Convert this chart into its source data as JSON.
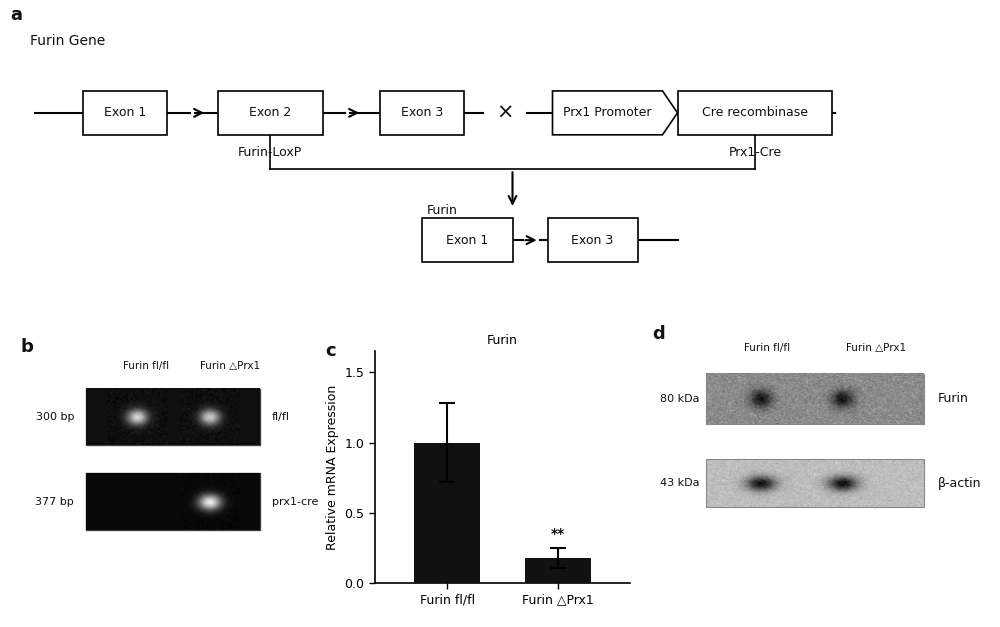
{
  "panel_a": {
    "furin_gene_label": "Furin Gene",
    "exon1_label": "Exon 1",
    "exon2_label": "Exon 2",
    "exon3_label": "Exon 3",
    "prx1_promoter_label": "Prx1 Promoter",
    "cre_label": "Cre recombinase",
    "furin_loxp_label": "Furin-LoxP",
    "prx1_cre_label": "Prx1-Cre",
    "furin_result_label": "Furin",
    "exon1_result_label": "Exon 1",
    "exon3_result_label": "Exon 3"
  },
  "panel_b": {
    "band1_label": "300 bp",
    "band2_label": "377 bp",
    "lane1_label": "Furin fl/fl",
    "lane2_label": "Furin △Prx1",
    "gel1_label": "fl/fl",
    "gel2_label": "prx1-cre"
  },
  "panel_c": {
    "title": "Furin",
    "ylabel": "Relative mRNA Expression",
    "categories": [
      "Furin fl/fl",
      "Furin △Prx1"
    ],
    "values": [
      1.0,
      0.18
    ],
    "errors": [
      0.28,
      0.07
    ],
    "bar_color": "#111111",
    "significance": "**",
    "ylim": [
      0,
      1.65
    ],
    "yticks": [
      0.0,
      0.5,
      1.0,
      1.5
    ]
  },
  "panel_d": {
    "lane1_label": "Furin fl/fl",
    "lane2_label": "Furin △Prx1",
    "band1_kda": "80 kDa",
    "band2_kda": "43 kDa",
    "protein1_label": "Furin",
    "protein2_label": "β-actin"
  },
  "bg_color": "#ffffff",
  "text_color": "#111111"
}
